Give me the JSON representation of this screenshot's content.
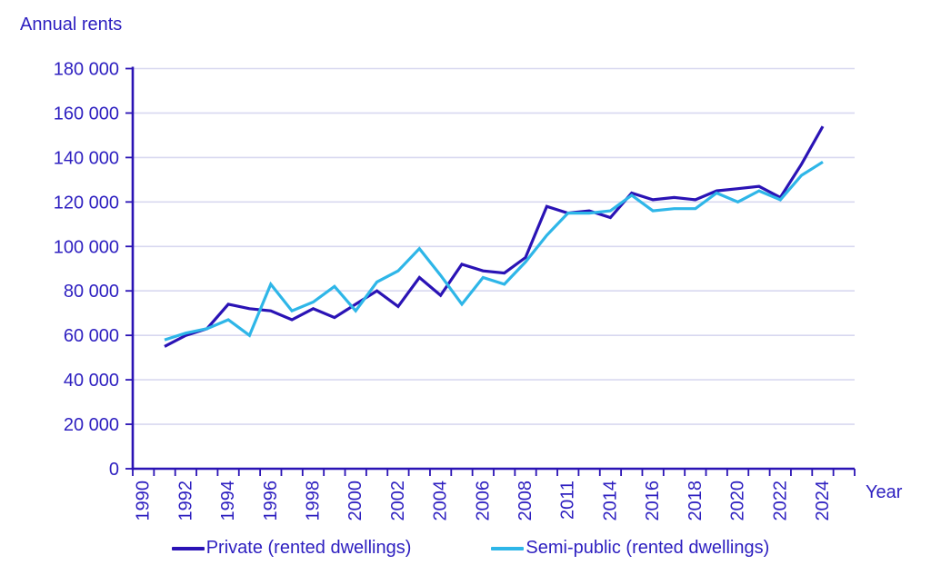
{
  "colors": {
    "text_blue": "#2d1fc0",
    "axis_blue": "#2a13b5",
    "grid": "#d8d8f0",
    "private_line": "#2a13b5",
    "semi_public_line": "#2eb6e8",
    "background": "#ffffff"
  },
  "chart_data": {
    "type": "line",
    "title": "Annual rents",
    "xlabel": "Year",
    "ylabel": "",
    "ylim": [
      0,
      180000
    ],
    "y_tick_step": 20000,
    "y_tick_labels": [
      "0",
      "20 000",
      "40 000",
      "60 000",
      "80 000",
      "100 000",
      "120 000",
      "140 000",
      "160 000",
      "180 000"
    ],
    "grid": "horizontal",
    "legend_position": "bottom",
    "x_label_every_nth_slot": 2,
    "categories": [
      "1990",
      "1991",
      "1992",
      "1993",
      "1994",
      "1995",
      "1996",
      "1997",
      "1998",
      "1999",
      "2000",
      "2001",
      "2002",
      "2003",
      "2004",
      "2005",
      "2006",
      "2007",
      "2008",
      "2010",
      "2011",
      "2013",
      "2014",
      "2015",
      "2016",
      "2017",
      "2018",
      "2019",
      "2020",
      "2021",
      "2022",
      "2023",
      "2024",
      ""
    ],
    "x_tick_labels_shown": [
      "1990",
      "1992",
      "1994",
      "1996",
      "1998",
      "2000",
      "2002",
      "2004",
      "2006",
      "2008",
      "2011",
      "2014",
      "2016",
      "2018",
      "2020",
      "2022",
      "2024"
    ],
    "series": [
      {
        "name": "Private (rented dwellings)",
        "color": "#2a13b5",
        "values": [
          null,
          55000,
          60000,
          63000,
          74000,
          72000,
          71000,
          67000,
          72000,
          68000,
          74000,
          80000,
          73000,
          86000,
          78000,
          92000,
          89000,
          88000,
          95000,
          118000,
          115000,
          116000,
          113000,
          124000,
          121000,
          122000,
          121000,
          125000,
          126000,
          127000,
          122000,
          137000,
          154000,
          null
        ]
      },
      {
        "name": "Semi-public (rented dwellings)",
        "color": "#2eb6e8",
        "values": [
          null,
          58000,
          61000,
          63000,
          67000,
          60000,
          83000,
          71000,
          75000,
          82000,
          71000,
          84000,
          89000,
          99000,
          87000,
          74000,
          86000,
          83000,
          93000,
          105000,
          115000,
          115000,
          116000,
          123000,
          116000,
          117000,
          117000,
          124000,
          120000,
          125000,
          121000,
          132000,
          138000,
          null
        ]
      }
    ]
  }
}
